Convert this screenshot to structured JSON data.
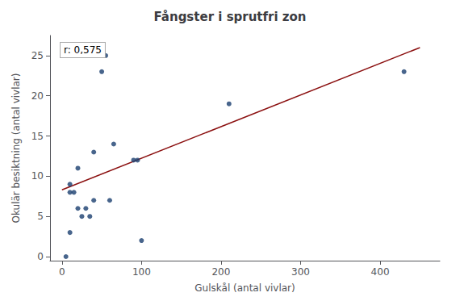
{
  "chart_data": {
    "type": "scatter",
    "title": "Fångster i sprutfri zon",
    "xlabel": "Gulskål (antal vivlar)",
    "ylabel": "Okulär besiktning (antal vivlar)",
    "annotation": "r: 0,575",
    "xlim": [
      -15,
      475
    ],
    "ylim": [
      -0.5,
      27.5
    ],
    "xticks": [
      0,
      100,
      200,
      300,
      400
    ],
    "yticks": [
      0,
      5,
      10,
      15,
      20,
      25
    ],
    "grid": false,
    "series": [
      {
        "type": "scatter",
        "color": "#1a3f6f",
        "x": [
          5,
          10,
          10,
          10,
          15,
          20,
          20,
          25,
          30,
          35,
          40,
          40,
          50,
          55,
          60,
          65,
          90,
          95,
          100,
          210,
          430
        ],
        "values": [
          0,
          8,
          9,
          3,
          8,
          6,
          11,
          5,
          6,
          5,
          13,
          7,
          23,
          25,
          7,
          14,
          12,
          12,
          2,
          19,
          23
        ]
      },
      {
        "type": "line",
        "color": "#8b1010",
        "x": [
          0,
          450
        ],
        "values": [
          8.3,
          26.0
        ]
      }
    ]
  }
}
